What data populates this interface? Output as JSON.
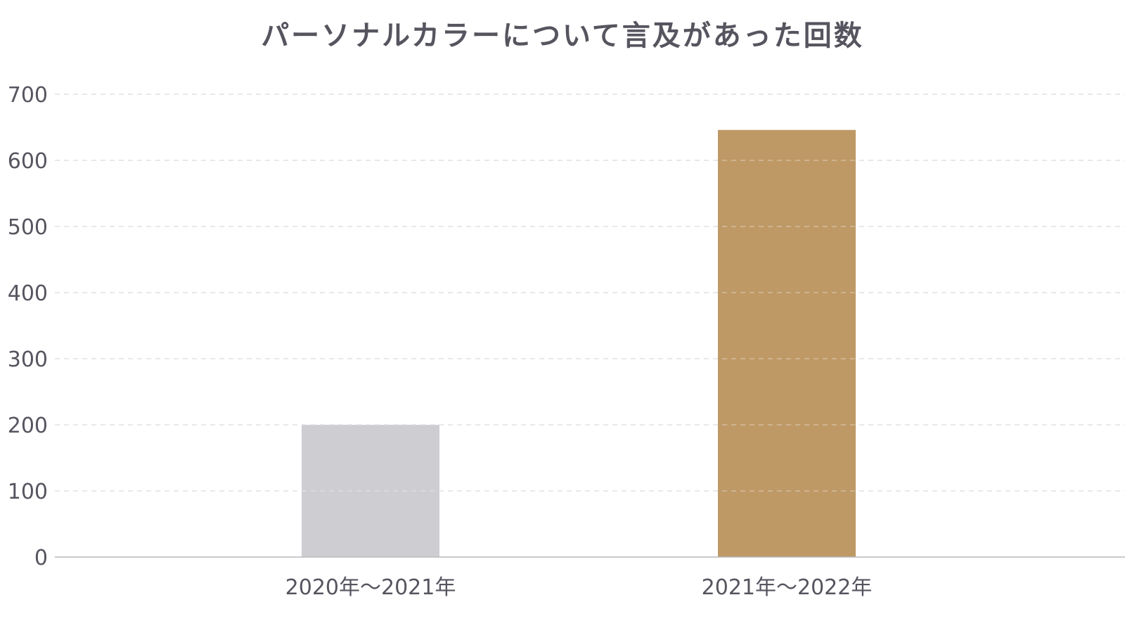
{
  "chart_data": {
    "type": "bar",
    "title": "パーソナルカラーについて言及があった回数",
    "xlabel": "",
    "ylabel": "",
    "categories": [
      "2020年〜2021年",
      "2021年〜2022年"
    ],
    "values": [
      200,
      646
    ],
    "bar_colors": [
      "#cecdd2",
      "#be9966"
    ],
    "ylim": [
      0,
      700
    ],
    "yticks": [
      0,
      100,
      200,
      300,
      400,
      500,
      600,
      700
    ],
    "grid": true,
    "legend": "none"
  },
  "colors": {
    "text": "#56555f",
    "grid": "#d4d4d8",
    "axis": "#b8b8bc"
  }
}
